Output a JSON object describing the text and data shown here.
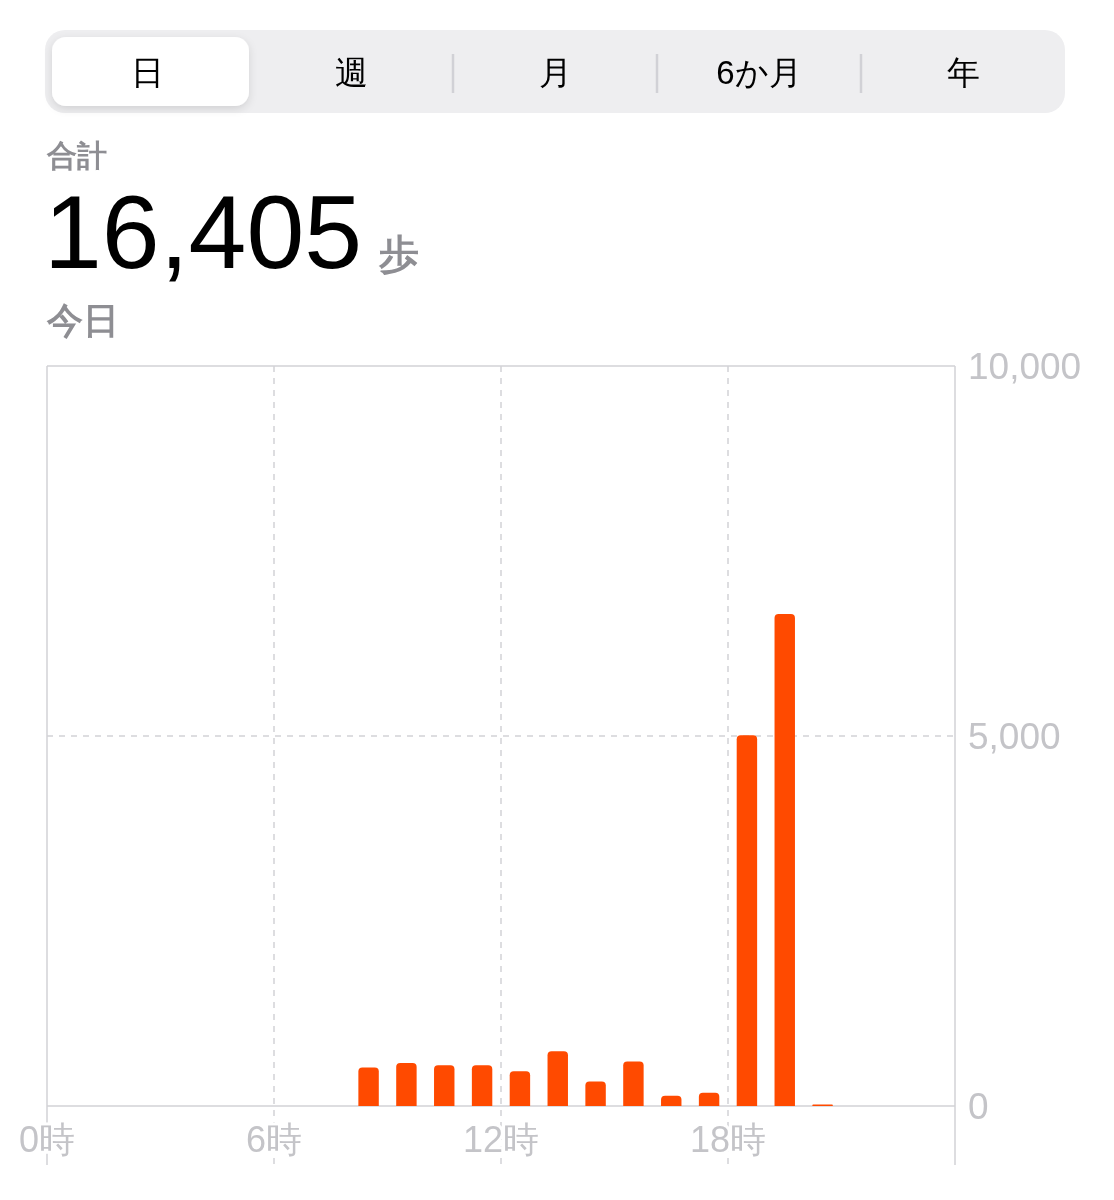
{
  "chart_data": [
    {
      "type": "other",
      "annotations": [
        "日",
        "週",
        "月",
        "6か月",
        "年"
      ]
    },
    {
      "type": "bar",
      "title": "16,405 歩",
      "subtitle": "今日",
      "annotations": [
        "合計"
      ],
      "x": [
        8.5,
        9.5,
        10.5,
        11.5,
        12.5,
        13.5,
        14.5,
        15.5,
        16.5,
        17.5,
        18.5,
        19.5,
        20.5
      ],
      "values": [
        520,
        580,
        550,
        550,
        470,
        740,
        330,
        600,
        140,
        180,
        5010,
        6650,
        20
      ],
      "color": "#ff4a00",
      "xlim": [
        0,
        24
      ],
      "xticks": [
        {
          "value": 0,
          "label": "0時"
        },
        {
          "value": 6,
          "label": "6時"
        },
        {
          "value": 12,
          "label": "12時"
        },
        {
          "value": 18,
          "label": "18時"
        }
      ],
      "ylim": [
        0,
        10000
      ],
      "yticks": [
        0,
        {
          "value": 5000,
          "label": "5,000"
        },
        {
          "value": 10000,
          "label": "10,000"
        }
      ],
      "grid": true
    }
  ]
}
